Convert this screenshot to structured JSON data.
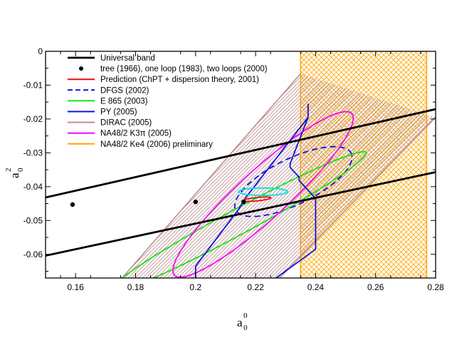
{
  "chart_data": {
    "type": "line",
    "xlabel": "a",
    "xlabel_sub": "0",
    "xlabel_sup": "0",
    "ylabel": "a",
    "ylabel_sub": "0",
    "ylabel_sup": "2",
    "xlim": [
      0.15,
      0.28
    ],
    "ylim": [
      -0.067,
      0.0
    ],
    "x_ticks": [
      0.16,
      0.18,
      0.2,
      0.22,
      0.24,
      0.26,
      0.28
    ],
    "x_tick_labels": [
      "0.16",
      "0.18",
      "0.2",
      "0.22",
      "0.24",
      "0.26",
      "0.28"
    ],
    "y_ticks": [
      0,
      -0.01,
      -0.02,
      -0.03,
      -0.04,
      -0.05,
      -0.06
    ],
    "y_tick_labels": [
      "0",
      "-0.01",
      "-0.02",
      "-0.03",
      "-0.04",
      "-0.05",
      "-0.06"
    ],
    "legend_position": "top-left",
    "colors": {
      "universal": "#000000",
      "prediction": "#e01010",
      "dfgs": "#1010e0",
      "e865": "#18e018",
      "py": "#1010e0",
      "dirac": "#bc8f8f",
      "na48k3pi": "#ff00ff",
      "na48ke4": "#ffa500",
      "cyan": "#00e0e0"
    },
    "series": [
      {
        "name": "Universal band",
        "kind": "line",
        "color": "#000000",
        "lines": [
          [
            [
              0.15,
              -0.0432
            ],
            [
              0.28,
              -0.0171
            ]
          ],
          [
            [
              0.15,
              -0.0604
            ],
            [
              0.28,
              -0.0357
            ]
          ]
        ]
      },
      {
        "name": "tree (1966), one loop (1983), two loops (2000)",
        "kind": "points",
        "color": "#000000",
        "points": [
          [
            0.159,
            -0.0453
          ],
          [
            0.2,
            -0.0445
          ],
          [
            0.216,
            -0.0445
          ]
        ]
      },
      {
        "name": "Prediction (ChPT + dispersion theory, 2001)",
        "kind": "ellipse",
        "color": "#e01010",
        "center": [
          0.2205,
          -0.0437
        ],
        "semi_axes": [
          0.0046,
          0.0005
        ],
        "slope": 0.09
      },
      {
        "name": "DFGS (2002)",
        "kind": "ellipse",
        "dashed": true,
        "color": "#1010e0",
        "center": [
          0.2326,
          -0.0385
        ],
        "semi_axes": [
          0.021,
          0.0069
        ],
        "slope": 0.42
      },
      {
        "name": "E 865 (2003)",
        "kind": "ellipse",
        "color": "#18e018",
        "center": [
          0.214,
          -0.0505
        ],
        "semi_axes": [
          0.0475,
          0.0038
        ],
        "slope": 0.48
      },
      {
        "name": "PY (2005)",
        "kind": "polygon",
        "color": "#1010e0",
        "points": [
          [
            0.2,
            -0.067
          ],
          [
            0.2,
            -0.0635
          ],
          [
            0.2145,
            -0.0465
          ],
          [
            0.2165,
            -0.0435
          ],
          [
            0.2375,
            -0.0195
          ],
          [
            0.2375,
            -0.0155
          ],
          [
            0.2375,
            -0.0195
          ],
          [
            0.2315,
            -0.0332
          ],
          [
            0.2315,
            -0.0343
          ],
          [
            0.2345,
            -0.0372
          ],
          [
            0.2345,
            -0.0382
          ],
          [
            0.24,
            -0.0435
          ],
          [
            0.24,
            -0.0585
          ],
          [
            0.2268,
            -0.067
          ]
        ]
      },
      {
        "name": "DIRAC (2005)",
        "kind": "band",
        "color": "#bc8f8f",
        "upper": [
          [
            0.1755,
            -0.067
          ],
          [
            0.235,
            -0.0066
          ]
        ],
        "lower": [
          [
            0.228,
            -0.067
          ],
          [
            0.28,
            -0.0195
          ]
        ]
      },
      {
        "name": "NA48/2 K3π (2005)",
        "kind": "ellipse",
        "color": "#ff00ff",
        "center": [
          0.2225,
          -0.0423
        ],
        "semi_axes": [
          0.038,
          0.0076
        ],
        "slope": 0.8
      },
      {
        "name": "NA48/2 Ke4 (2006) preliminary",
        "kind": "rect",
        "color": "#ffa500",
        "x_range": [
          0.235,
          0.277
        ],
        "y_range": [
          -0.067,
          0.0
        ]
      },
      {
        "name": "",
        "kind": "ellipse",
        "color": "#00e0e0",
        "center": [
          0.2225,
          -0.0415
        ],
        "semi_axes": [
          0.0082,
          0.0011
        ],
        "slope": 0.0
      }
    ]
  }
}
